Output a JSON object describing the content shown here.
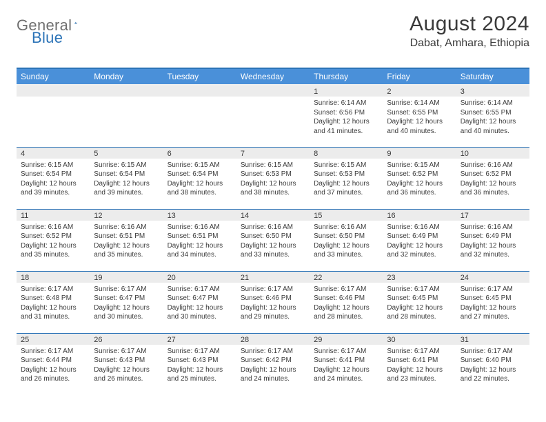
{
  "logo": {
    "text1": "General",
    "text2": "Blue"
  },
  "title": "August 2024",
  "location": "Dabat, Amhara, Ethiopia",
  "colors": {
    "header_bg": "#4a90d9",
    "header_text": "#ffffff",
    "row_divider": "#2b73b7",
    "daynum_bg": "#ececec",
    "body_text": "#3a3a3a",
    "logo_gray": "#6f6f6f",
    "logo_blue": "#2b73b7",
    "page_bg": "#ffffff"
  },
  "columns": [
    "Sunday",
    "Monday",
    "Tuesday",
    "Wednesday",
    "Thursday",
    "Friday",
    "Saturday"
  ],
  "weeks": [
    [
      null,
      null,
      null,
      null,
      {
        "n": "1",
        "sr": "6:14 AM",
        "ss": "6:56 PM",
        "dl": "12 hours and 41 minutes."
      },
      {
        "n": "2",
        "sr": "6:14 AM",
        "ss": "6:55 PM",
        "dl": "12 hours and 40 minutes."
      },
      {
        "n": "3",
        "sr": "6:14 AM",
        "ss": "6:55 PM",
        "dl": "12 hours and 40 minutes."
      }
    ],
    [
      {
        "n": "4",
        "sr": "6:15 AM",
        "ss": "6:54 PM",
        "dl": "12 hours and 39 minutes."
      },
      {
        "n": "5",
        "sr": "6:15 AM",
        "ss": "6:54 PM",
        "dl": "12 hours and 39 minutes."
      },
      {
        "n": "6",
        "sr": "6:15 AM",
        "ss": "6:54 PM",
        "dl": "12 hours and 38 minutes."
      },
      {
        "n": "7",
        "sr": "6:15 AM",
        "ss": "6:53 PM",
        "dl": "12 hours and 38 minutes."
      },
      {
        "n": "8",
        "sr": "6:15 AM",
        "ss": "6:53 PM",
        "dl": "12 hours and 37 minutes."
      },
      {
        "n": "9",
        "sr": "6:15 AM",
        "ss": "6:52 PM",
        "dl": "12 hours and 36 minutes."
      },
      {
        "n": "10",
        "sr": "6:16 AM",
        "ss": "6:52 PM",
        "dl": "12 hours and 36 minutes."
      }
    ],
    [
      {
        "n": "11",
        "sr": "6:16 AM",
        "ss": "6:52 PM",
        "dl": "12 hours and 35 minutes."
      },
      {
        "n": "12",
        "sr": "6:16 AM",
        "ss": "6:51 PM",
        "dl": "12 hours and 35 minutes."
      },
      {
        "n": "13",
        "sr": "6:16 AM",
        "ss": "6:51 PM",
        "dl": "12 hours and 34 minutes."
      },
      {
        "n": "14",
        "sr": "6:16 AM",
        "ss": "6:50 PM",
        "dl": "12 hours and 33 minutes."
      },
      {
        "n": "15",
        "sr": "6:16 AM",
        "ss": "6:50 PM",
        "dl": "12 hours and 33 minutes."
      },
      {
        "n": "16",
        "sr": "6:16 AM",
        "ss": "6:49 PM",
        "dl": "12 hours and 32 minutes."
      },
      {
        "n": "17",
        "sr": "6:16 AM",
        "ss": "6:49 PM",
        "dl": "12 hours and 32 minutes."
      }
    ],
    [
      {
        "n": "18",
        "sr": "6:17 AM",
        "ss": "6:48 PM",
        "dl": "12 hours and 31 minutes."
      },
      {
        "n": "19",
        "sr": "6:17 AM",
        "ss": "6:47 PM",
        "dl": "12 hours and 30 minutes."
      },
      {
        "n": "20",
        "sr": "6:17 AM",
        "ss": "6:47 PM",
        "dl": "12 hours and 30 minutes."
      },
      {
        "n": "21",
        "sr": "6:17 AM",
        "ss": "6:46 PM",
        "dl": "12 hours and 29 minutes."
      },
      {
        "n": "22",
        "sr": "6:17 AM",
        "ss": "6:46 PM",
        "dl": "12 hours and 28 minutes."
      },
      {
        "n": "23",
        "sr": "6:17 AM",
        "ss": "6:45 PM",
        "dl": "12 hours and 28 minutes."
      },
      {
        "n": "24",
        "sr": "6:17 AM",
        "ss": "6:45 PM",
        "dl": "12 hours and 27 minutes."
      }
    ],
    [
      {
        "n": "25",
        "sr": "6:17 AM",
        "ss": "6:44 PM",
        "dl": "12 hours and 26 minutes."
      },
      {
        "n": "26",
        "sr": "6:17 AM",
        "ss": "6:43 PM",
        "dl": "12 hours and 26 minutes."
      },
      {
        "n": "27",
        "sr": "6:17 AM",
        "ss": "6:43 PM",
        "dl": "12 hours and 25 minutes."
      },
      {
        "n": "28",
        "sr": "6:17 AM",
        "ss": "6:42 PM",
        "dl": "12 hours and 24 minutes."
      },
      {
        "n": "29",
        "sr": "6:17 AM",
        "ss": "6:41 PM",
        "dl": "12 hours and 24 minutes."
      },
      {
        "n": "30",
        "sr": "6:17 AM",
        "ss": "6:41 PM",
        "dl": "12 hours and 23 minutes."
      },
      {
        "n": "31",
        "sr": "6:17 AM",
        "ss": "6:40 PM",
        "dl": "12 hours and 22 minutes."
      }
    ]
  ],
  "labels": {
    "sunrise": "Sunrise:",
    "sunset": "Sunset:",
    "daylight": "Daylight:"
  }
}
